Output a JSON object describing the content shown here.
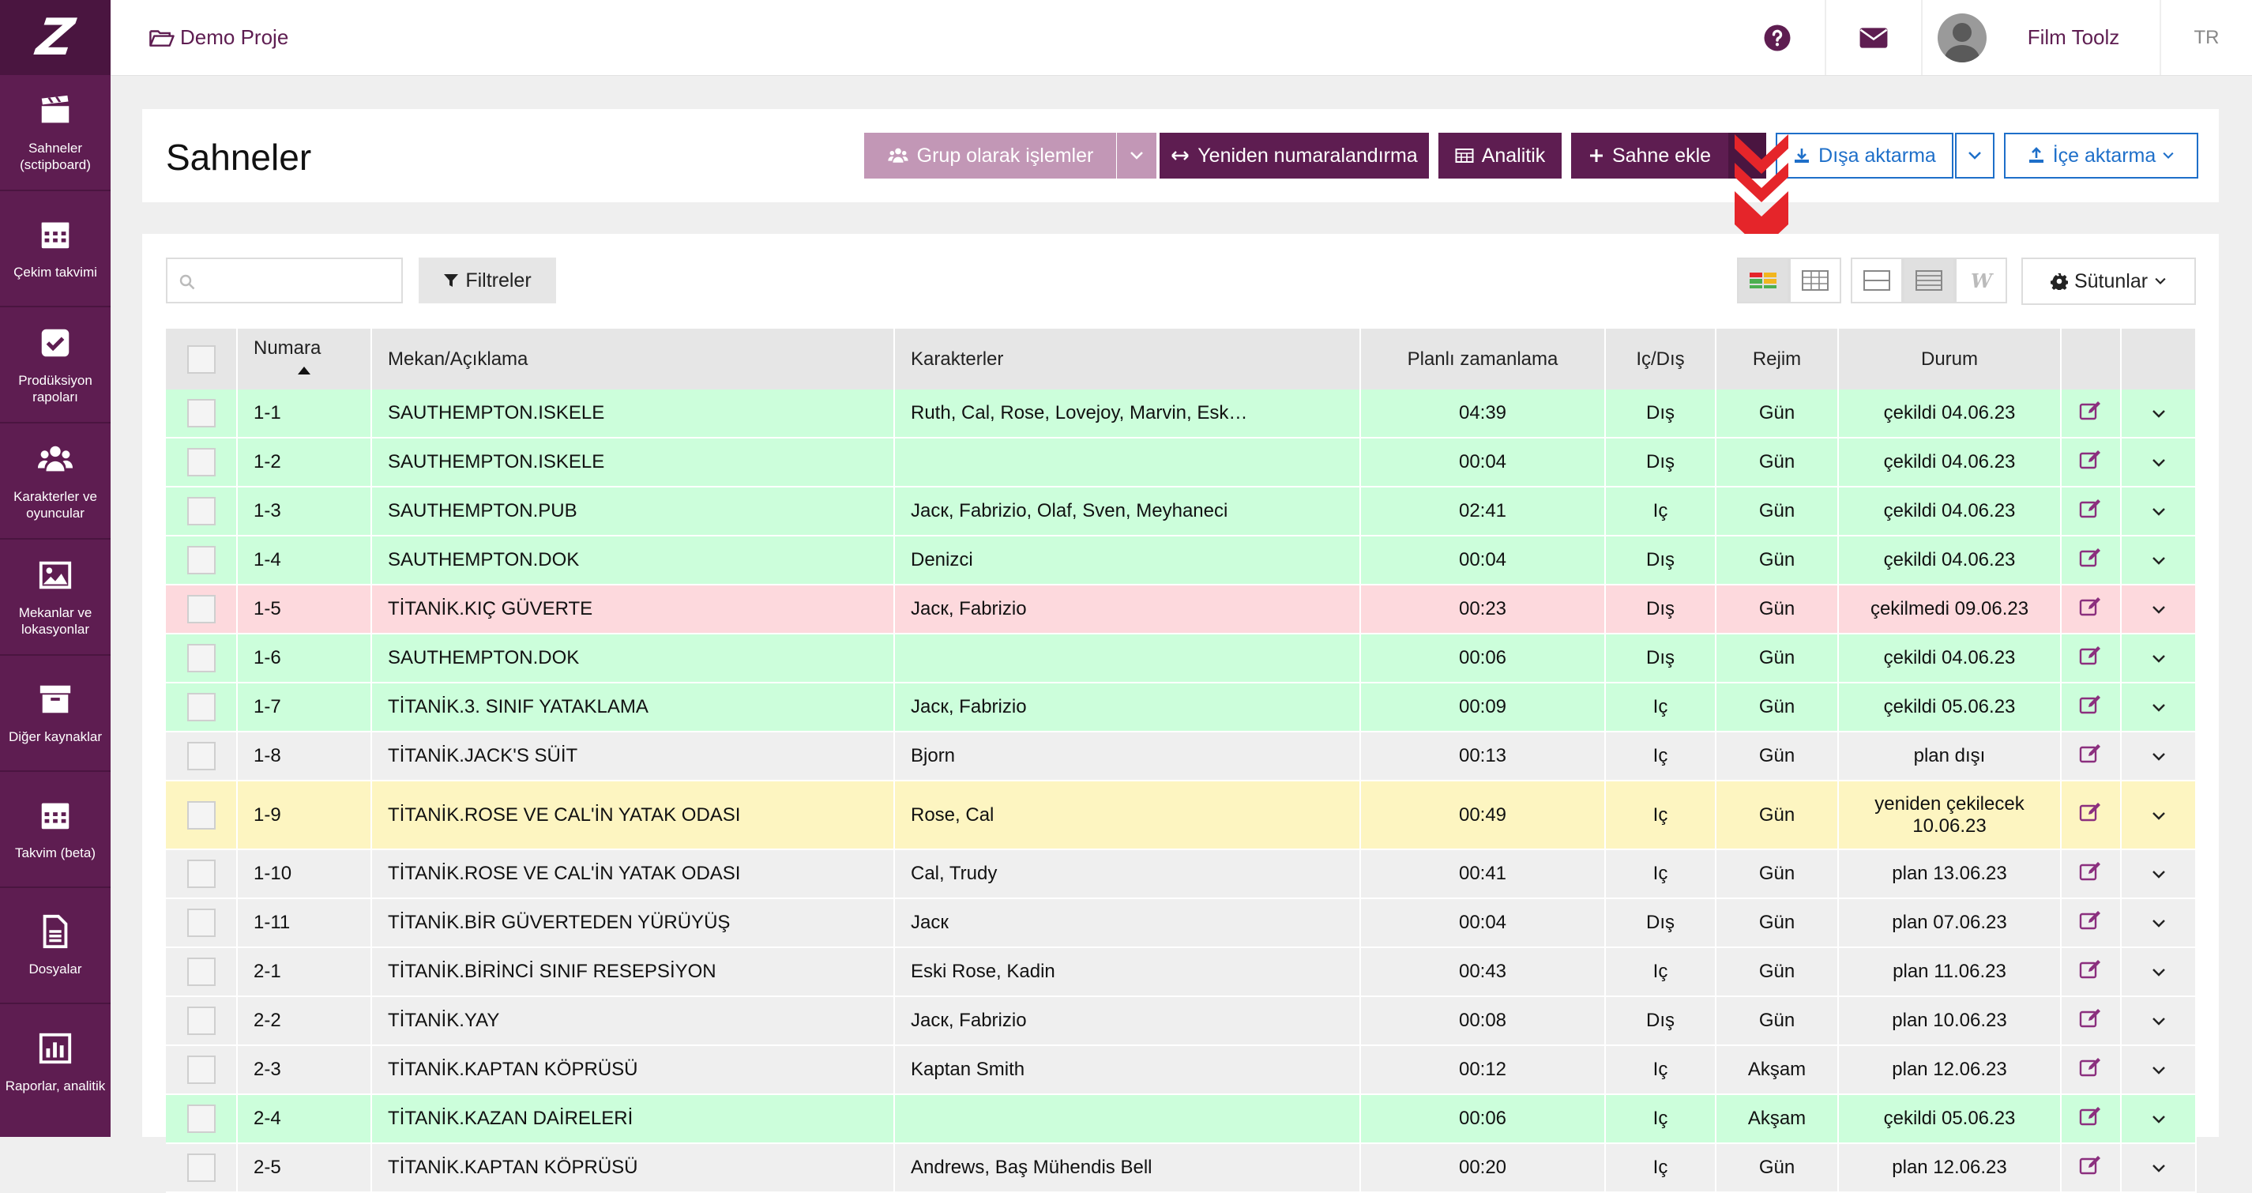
{
  "sidebar": {
    "logo": "Z",
    "items": [
      {
        "label": "Sahneler (sctipboard)",
        "icon": "clapperboard-icon"
      },
      {
        "label": "Çekim takvimi",
        "icon": "calendar-icon"
      },
      {
        "label": "Prodüksiyon rapoları",
        "icon": "checkbox-icon"
      },
      {
        "label": "Karakterler ve oyuncular",
        "icon": "users-icon"
      },
      {
        "label": "Mekanlar ve lokasyonlar",
        "icon": "image-icon"
      },
      {
        "label": "Diğer kaynaklar",
        "icon": "archive-icon"
      },
      {
        "label": "Takvim (beta)",
        "icon": "calendar-grid-icon"
      },
      {
        "label": "Dosyalar",
        "icon": "file-icon"
      },
      {
        "label": "Raporlar, analitik",
        "icon": "chart-icon"
      }
    ]
  },
  "topbar": {
    "project": "Demo Proje",
    "user_name": "Film Toolz",
    "lang": "TR"
  },
  "header": {
    "title": "Sahneler",
    "group_ops": "Grup olarak işlemler",
    "renumber": "Yeniden numaralandırma",
    "analytic": "Analitik",
    "add_scene": "Sahne ekle",
    "export": "Dışa aktarma",
    "import": "İçe aktarma"
  },
  "toolbar": {
    "search_placeholder": "",
    "filters": "Filtreler",
    "columns": "Sütunlar"
  },
  "table": {
    "headers": {
      "number": "Numara",
      "location": "Mekan/Açıklama",
      "characters": "Karakterler",
      "planned": "Planlı zamanlama",
      "int_ext": "Iç/Dış",
      "mode": "Rejim",
      "status": "Durum"
    },
    "rows": [
      {
        "num": "1-1",
        "loc": "SAUTHEMPTON.ISKELE",
        "chars": "Ruth, Cal, Rose, Lovejoy, Marvin, Esk…",
        "time": "04:39",
        "ie": "Dış",
        "mode": "Gün",
        "status": "çekildi 04.06.23",
        "color": "green"
      },
      {
        "num": "1-2",
        "loc": "SAUTHEMPTON.ISKELE",
        "chars": "",
        "time": "00:04",
        "ie": "Dış",
        "mode": "Gün",
        "status": "çekildi 04.06.23",
        "color": "green"
      },
      {
        "num": "1-3",
        "loc": "SAUTHEMPTON.PUB",
        "chars": "Jacк, Fabrizio, Olaf, Sven, Meyhaneci",
        "time": "02:41",
        "ie": "Iç",
        "mode": "Gün",
        "status": "çekildi 04.06.23",
        "color": "green"
      },
      {
        "num": "1-4",
        "loc": "SAUTHEMPTON.DOK",
        "chars": "Denizci",
        "time": "00:04",
        "ie": "Dış",
        "mode": "Gün",
        "status": "çekildi 04.06.23",
        "color": "green"
      },
      {
        "num": "1-5",
        "loc": "TİTANİK.KIÇ GÜVERTE",
        "chars": "Jacк, Fabrizio",
        "time": "00:23",
        "ie": "Dış",
        "mode": "Gün",
        "status": "çekilmedi 09.06.23",
        "color": "red"
      },
      {
        "num": "1-6",
        "loc": "SAUTHEMPTON.DOK",
        "chars": "",
        "time": "00:06",
        "ie": "Dış",
        "mode": "Gün",
        "status": "çekildi 04.06.23",
        "color": "green"
      },
      {
        "num": "1-7",
        "loc": "TİTANİK.3. SINIF YATAKLAMA",
        "chars": "Jacк, Fabrizio",
        "time": "00:09",
        "ie": "Iç",
        "mode": "Gün",
        "status": "çekildi 05.06.23",
        "color": "green"
      },
      {
        "num": "1-8",
        "loc": "TİTANİK.JACK'S SÜİT",
        "chars": "Bjorn",
        "time": "00:13",
        "ie": "Iç",
        "mode": "Gün",
        "status": "plan dışı",
        "color": "gray"
      },
      {
        "num": "1-9",
        "loc": "TİTANİK.ROSE VE CAL'İN YATAK ODASI",
        "chars": "Rose, Cal",
        "time": "00:49",
        "ie": "Iç",
        "mode": "Gün",
        "status": "yeniden çekilecek 10.06.23",
        "color": "yellow"
      },
      {
        "num": "1-10",
        "loc": "TİTANİK.ROSE VE CAL'İN YATAK ODASI",
        "chars": "Cal, Trudy",
        "time": "00:41",
        "ie": "Iç",
        "mode": "Gün",
        "status": "plan 13.06.23",
        "color": "gray"
      },
      {
        "num": "1-11",
        "loc": "TİTANİK.BİR GÜVERTEDEN YÜRÜYÜŞ",
        "chars": "Jacк",
        "time": "00:04",
        "ie": "Dış",
        "mode": "Gün",
        "status": "plan 07.06.23",
        "color": "gray"
      },
      {
        "num": "2-1",
        "loc": "TİTANİK.BİRİNCİ SINIF RESEPSİYON",
        "chars": "Eski Rose, Kadin",
        "time": "00:43",
        "ie": "Iç",
        "mode": "Gün",
        "status": "plan 11.06.23",
        "color": "gray"
      },
      {
        "num": "2-2",
        "loc": "TİTANİK.YAY",
        "chars": "Jacк, Fabrizio",
        "time": "00:08",
        "ie": "Dış",
        "mode": "Gün",
        "status": "plan 10.06.23",
        "color": "gray"
      },
      {
        "num": "2-3",
        "loc": "TİTANİK.KAPTAN KÖPRÜSÜ",
        "chars": "Kaptan Smith",
        "time": "00:12",
        "ie": "Iç",
        "mode": "Akşam",
        "status": "plan 12.06.23",
        "color": "gray"
      },
      {
        "num": "2-4",
        "loc": "TİTANİK.KAZAN DAİRELERİ",
        "chars": "",
        "time": "00:06",
        "ie": "Iç",
        "mode": "Akşam",
        "status": "çekildi 05.06.23",
        "color": "green"
      },
      {
        "num": "2-5",
        "loc": "TİTANİK.KAPTAN KÖPRÜSÜ",
        "chars": "Andrews, Baş Mühendis Bell",
        "time": "00:20",
        "ie": "Iç",
        "mode": "Gün",
        "status": "plan 12.06.23",
        "color": "gray"
      }
    ]
  },
  "colors": {
    "brand": "#5e1d51",
    "brand_light": "#c297b6",
    "link_blue": "#1e6fc9",
    "row_green": "#ccfedb",
    "row_red": "#fdd9dd",
    "row_yellow": "#fdf5c1",
    "row_gray": "#efefef"
  }
}
